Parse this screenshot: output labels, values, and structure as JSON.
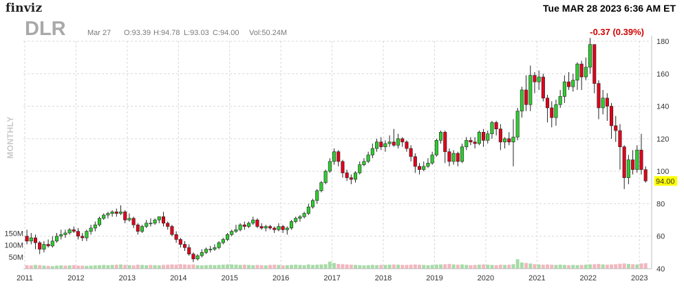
{
  "header": {
    "brand": "finviz",
    "datetime": "Tue MAR 28 2023 6:36 AM ET",
    "ticker": "DLR",
    "date_label": "Mar 27",
    "open": "O:93.39",
    "high": "H:94.78",
    "low": "L:93.03",
    "close": "C:94.00",
    "volume": "Vol:50.24M",
    "change": "-0.37 (0.39%)",
    "period_label": "MONTHLY"
  },
  "last_price_label": "94.00",
  "colors": {
    "up": "#2fcc2f",
    "down": "#e0001b",
    "volume_up": "#a7dba7",
    "volume_down": "#f2b7bf",
    "grid": "#d7d7d7",
    "highlight": "#ffff00"
  },
  "chart_data": {
    "type": "candlestick",
    "title": "DLR",
    "period": "monthly",
    "ylim": [
      40,
      180
    ],
    "yticks": [
      40,
      60,
      80,
      100,
      120,
      140,
      160,
      180
    ],
    "x_tick_labels": [
      "2011",
      "2012",
      "2013",
      "2014",
      "2015",
      "2016",
      "2017",
      "2018",
      "2019",
      "2020",
      "2021",
      "2022",
      "2023"
    ],
    "volume_tick_labels": [
      "150M",
      "100M",
      "50M"
    ],
    "volume_ticks": [
      150,
      100,
      50
    ],
    "volume_ylim": [
      0,
      200
    ],
    "last_price": 94.0,
    "year_start": 2011,
    "candle_step_years": 0.0833,
    "candles": [
      [
        60,
        57,
        64,
        55
      ],
      [
        57,
        59,
        62,
        55
      ],
      [
        59,
        56,
        61,
        52
      ],
      [
        56,
        52,
        57,
        49
      ],
      [
        52,
        55,
        57,
        50
      ],
      [
        55,
        54,
        58,
        53
      ],
      [
        54,
        57,
        60,
        53
      ],
      [
        57,
        60,
        62,
        56
      ],
      [
        60,
        61,
        64,
        58
      ],
      [
        61,
        62,
        64,
        59
      ],
      [
        62,
        64,
        65,
        61
      ],
      [
        64,
        63,
        66,
        62
      ],
      [
        63,
        60,
        65,
        58
      ],
      [
        60,
        59,
        62,
        57
      ],
      [
        59,
        63,
        64,
        57
      ],
      [
        63,
        65,
        67,
        61
      ],
      [
        65,
        67,
        69,
        63
      ],
      [
        67,
        71,
        72,
        66
      ],
      [
        71,
        73,
        74,
        70
      ],
      [
        73,
        74,
        75,
        71
      ],
      [
        74,
        75,
        76,
        72
      ],
      [
        75,
        74,
        77,
        72
      ],
      [
        74,
        75,
        79,
        73
      ],
      [
        75,
        70,
        76,
        68
      ],
      [
        70,
        71,
        74,
        69
      ],
      [
        71,
        67,
        72,
        65
      ],
      [
        67,
        63,
        68,
        61
      ],
      [
        63,
        66,
        67,
        62
      ],
      [
        66,
        68,
        70,
        65
      ],
      [
        68,
        68,
        71,
        66
      ],
      [
        68,
        70,
        71,
        67
      ],
      [
        70,
        72,
        72,
        68
      ],
      [
        72,
        68,
        75,
        66
      ],
      [
        68,
        66,
        69,
        64
      ],
      [
        66,
        61,
        67,
        60
      ],
      [
        61,
        58,
        63,
        56
      ],
      [
        58,
        55,
        59,
        53
      ],
      [
        55,
        53,
        57,
        51
      ],
      [
        53,
        49,
        55,
        48
      ],
      [
        49,
        46,
        50,
        44
      ],
      [
        46,
        48,
        49,
        45
      ],
      [
        48,
        50,
        52,
        47
      ],
      [
        50,
        52,
        53,
        49
      ],
      [
        52,
        52,
        54,
        50
      ],
      [
        52,
        53,
        55,
        51
      ],
      [
        53,
        56,
        57,
        52
      ],
      [
        56,
        58,
        59,
        55
      ],
      [
        58,
        61,
        62,
        57
      ],
      [
        61,
        63,
        64,
        60
      ],
      [
        63,
        64,
        67,
        62
      ],
      [
        64,
        67,
        68,
        63
      ],
      [
        67,
        66,
        69,
        64
      ],
      [
        66,
        68,
        69,
        65
      ],
      [
        68,
        70,
        72,
        67
      ],
      [
        70,
        66,
        71,
        65
      ],
      [
        66,
        65,
        68,
        64
      ],
      [
        65,
        66,
        67,
        63
      ],
      [
        66,
        65,
        67,
        64
      ],
      [
        65,
        64,
        66,
        62
      ],
      [
        64,
        66,
        68,
        63
      ],
      [
        66,
        64,
        67,
        62
      ],
      [
        64,
        65,
        66,
        61
      ],
      [
        65,
        69,
        70,
        64
      ],
      [
        69,
        71,
        72,
        68
      ],
      [
        71,
        72,
        73,
        69
      ],
      [
        72,
        74,
        75,
        71
      ],
      [
        74,
        78,
        80,
        73
      ],
      [
        78,
        82,
        83,
        77
      ],
      [
        82,
        88,
        89,
        80
      ],
      [
        88,
        93,
        94,
        87
      ],
      [
        93,
        100,
        101,
        92
      ],
      [
        100,
        106,
        108,
        99
      ],
      [
        106,
        112,
        114,
        104
      ],
      [
        112,
        106,
        113,
        103
      ],
      [
        106,
        99,
        107,
        96
      ],
      [
        99,
        96,
        101,
        94
      ],
      [
        96,
        95,
        98,
        92
      ],
      [
        95,
        99,
        100,
        93
      ],
      [
        99,
        104,
        106,
        98
      ],
      [
        104,
        106,
        108,
        103
      ],
      [
        106,
        110,
        112,
        105
      ],
      [
        110,
        114,
        117,
        108
      ],
      [
        114,
        118,
        120,
        112
      ],
      [
        118,
        115,
        121,
        113
      ],
      [
        115,
        117,
        119,
        112
      ],
      [
        117,
        118,
        122,
        115
      ],
      [
        118,
        116,
        126,
        115
      ],
      [
        116,
        120,
        123,
        114
      ],
      [
        120,
        118,
        121,
        115
      ],
      [
        118,
        114,
        119,
        112
      ],
      [
        114,
        109,
        116,
        106
      ],
      [
        109,
        103,
        111,
        99
      ],
      [
        103,
        101,
        105,
        98
      ],
      [
        101,
        103,
        106,
        100
      ],
      [
        103,
        105,
        108,
        102
      ],
      [
        105,
        110,
        112,
        104
      ],
      [
        110,
        119,
        120,
        109
      ],
      [
        119,
        124,
        125,
        117
      ],
      [
        124,
        112,
        125,
        105
      ],
      [
        112,
        106,
        114,
        103
      ],
      [
        106,
        111,
        113,
        104
      ],
      [
        111,
        106,
        112,
        103
      ],
      [
        106,
        115,
        117,
        105
      ],
      [
        115,
        119,
        121,
        113
      ],
      [
        119,
        118,
        121,
        116
      ],
      [
        118,
        117,
        121,
        114
      ],
      [
        117,
        124,
        125,
        116
      ],
      [
        124,
        119,
        126,
        115
      ],
      [
        119,
        123,
        125,
        117
      ],
      [
        123,
        130,
        131,
        120
      ],
      [
        130,
        126,
        131,
        122
      ],
      [
        126,
        118,
        129,
        113
      ],
      [
        118,
        120,
        121,
        114
      ],
      [
        120,
        118,
        124,
        116
      ],
      [
        118,
        121,
        132,
        103
      ],
      [
        121,
        137,
        139,
        119
      ],
      [
        137,
        150,
        152,
        133
      ],
      [
        150,
        141,
        159,
        137
      ],
      [
        141,
        159,
        165,
        137
      ],
      [
        159,
        155,
        161,
        148
      ],
      [
        155,
        158,
        162,
        150
      ],
      [
        158,
        145,
        160,
        143
      ],
      [
        145,
        139,
        147,
        130
      ],
      [
        139,
        133,
        143,
        127
      ],
      [
        133,
        141,
        144,
        128
      ],
      [
        141,
        146,
        150,
        139
      ],
      [
        146,
        155,
        159,
        142
      ],
      [
        155,
        152,
        161,
        150
      ],
      [
        152,
        156,
        160,
        149
      ],
      [
        156,
        166,
        167,
        150
      ],
      [
        166,
        158,
        168,
        150
      ],
      [
        158,
        164,
        170,
        156
      ],
      [
        164,
        178,
        182,
        160
      ],
      [
        178,
        154,
        178,
        148
      ],
      [
        154,
        139,
        156,
        132
      ],
      [
        139,
        145,
        150,
        135
      ],
      [
        145,
        140,
        148,
        131
      ],
      [
        140,
        128,
        142,
        120
      ],
      [
        128,
        125,
        134,
        118
      ],
      [
        125,
        115,
        129,
        101
      ],
      [
        115,
        96,
        116,
        89
      ],
      [
        96,
        107,
        110,
        92
      ],
      [
        107,
        101,
        113,
        98
      ],
      [
        101,
        113,
        116,
        99
      ],
      [
        113,
        101,
        123,
        98
      ],
      [
        101,
        94,
        103,
        93
      ]
    ],
    "volume": [
      [
        15,
        0
      ],
      [
        14,
        0
      ],
      [
        16,
        1
      ],
      [
        15,
        0
      ],
      [
        13,
        1
      ],
      [
        12,
        0
      ],
      [
        11,
        1
      ],
      [
        13,
        1
      ],
      [
        14,
        1
      ],
      [
        13,
        0
      ],
      [
        14,
        1
      ],
      [
        15,
        0
      ],
      [
        13,
        0
      ],
      [
        13,
        0
      ],
      [
        12,
        1
      ],
      [
        13,
        1
      ],
      [
        14,
        1
      ],
      [
        15,
        1
      ],
      [
        16,
        1
      ],
      [
        15,
        1
      ],
      [
        16,
        1
      ],
      [
        17,
        0
      ],
      [
        18,
        1
      ],
      [
        16,
        0
      ],
      [
        15,
        1
      ],
      [
        14,
        0
      ],
      [
        17,
        0
      ],
      [
        16,
        1
      ],
      [
        15,
        1
      ],
      [
        16,
        0
      ],
      [
        15,
        1
      ],
      [
        14,
        1
      ],
      [
        16,
        0
      ],
      [
        17,
        0
      ],
      [
        18,
        0
      ],
      [
        17,
        0
      ],
      [
        19,
        0
      ],
      [
        18,
        0
      ],
      [
        17,
        0
      ],
      [
        18,
        0
      ],
      [
        15,
        1
      ],
      [
        14,
        1
      ],
      [
        15,
        1
      ],
      [
        16,
        1
      ],
      [
        15,
        1
      ],
      [
        16,
        1
      ],
      [
        17,
        1
      ],
      [
        18,
        1
      ],
      [
        18,
        1
      ],
      [
        17,
        1
      ],
      [
        16,
        1
      ],
      [
        17,
        0
      ],
      [
        16,
        1
      ],
      [
        15,
        1
      ],
      [
        16,
        0
      ],
      [
        15,
        0
      ],
      [
        14,
        1
      ],
      [
        16,
        0
      ],
      [
        17,
        0
      ],
      [
        16,
        1
      ],
      [
        14,
        0
      ],
      [
        15,
        1
      ],
      [
        16,
        1
      ],
      [
        17,
        1
      ],
      [
        16,
        1
      ],
      [
        15,
        1
      ],
      [
        18,
        1
      ],
      [
        16,
        1
      ],
      [
        17,
        1
      ],
      [
        18,
        1
      ],
      [
        19,
        1
      ],
      [
        30,
        1
      ],
      [
        24,
        1
      ],
      [
        20,
        0
      ],
      [
        19,
        0
      ],
      [
        18,
        0
      ],
      [
        17,
        0
      ],
      [
        16,
        1
      ],
      [
        15,
        1
      ],
      [
        14,
        1
      ],
      [
        15,
        1
      ],
      [
        16,
        1
      ],
      [
        15,
        1
      ],
      [
        16,
        0
      ],
      [
        16,
        1
      ],
      [
        17,
        1
      ],
      [
        18,
        0
      ],
      [
        17,
        1
      ],
      [
        16,
        0
      ],
      [
        16,
        0
      ],
      [
        17,
        0
      ],
      [
        18,
        0
      ],
      [
        17,
        0
      ],
      [
        16,
        1
      ],
      [
        15,
        1
      ],
      [
        16,
        1
      ],
      [
        17,
        1
      ],
      [
        18,
        1
      ],
      [
        19,
        0
      ],
      [
        20,
        0
      ],
      [
        18,
        1
      ],
      [
        17,
        0
      ],
      [
        18,
        1
      ],
      [
        16,
        1
      ],
      [
        15,
        0
      ],
      [
        16,
        0
      ],
      [
        17,
        1
      ],
      [
        18,
        0
      ],
      [
        17,
        1
      ],
      [
        16,
        1
      ],
      [
        15,
        0
      ],
      [
        17,
        0
      ],
      [
        16,
        1
      ],
      [
        17,
        0
      ],
      [
        19,
        1
      ],
      [
        40,
        1
      ],
      [
        26,
        1
      ],
      [
        24,
        0
      ],
      [
        22,
        1
      ],
      [
        19,
        0
      ],
      [
        18,
        1
      ],
      [
        17,
        0
      ],
      [
        18,
        0
      ],
      [
        17,
        0
      ],
      [
        16,
        1
      ],
      [
        17,
        1
      ],
      [
        16,
        1
      ],
      [
        15,
        0
      ],
      [
        16,
        1
      ],
      [
        15,
        1
      ],
      [
        16,
        0
      ],
      [
        17,
        1
      ],
      [
        18,
        1
      ],
      [
        19,
        0
      ],
      [
        20,
        0
      ],
      [
        18,
        1
      ],
      [
        17,
        0
      ],
      [
        18,
        0
      ],
      [
        19,
        0
      ],
      [
        21,
        0
      ],
      [
        22,
        0
      ],
      [
        20,
        1
      ],
      [
        19,
        0
      ],
      [
        18,
        1
      ],
      [
        22,
        0
      ],
      [
        23,
        0
      ]
    ]
  }
}
